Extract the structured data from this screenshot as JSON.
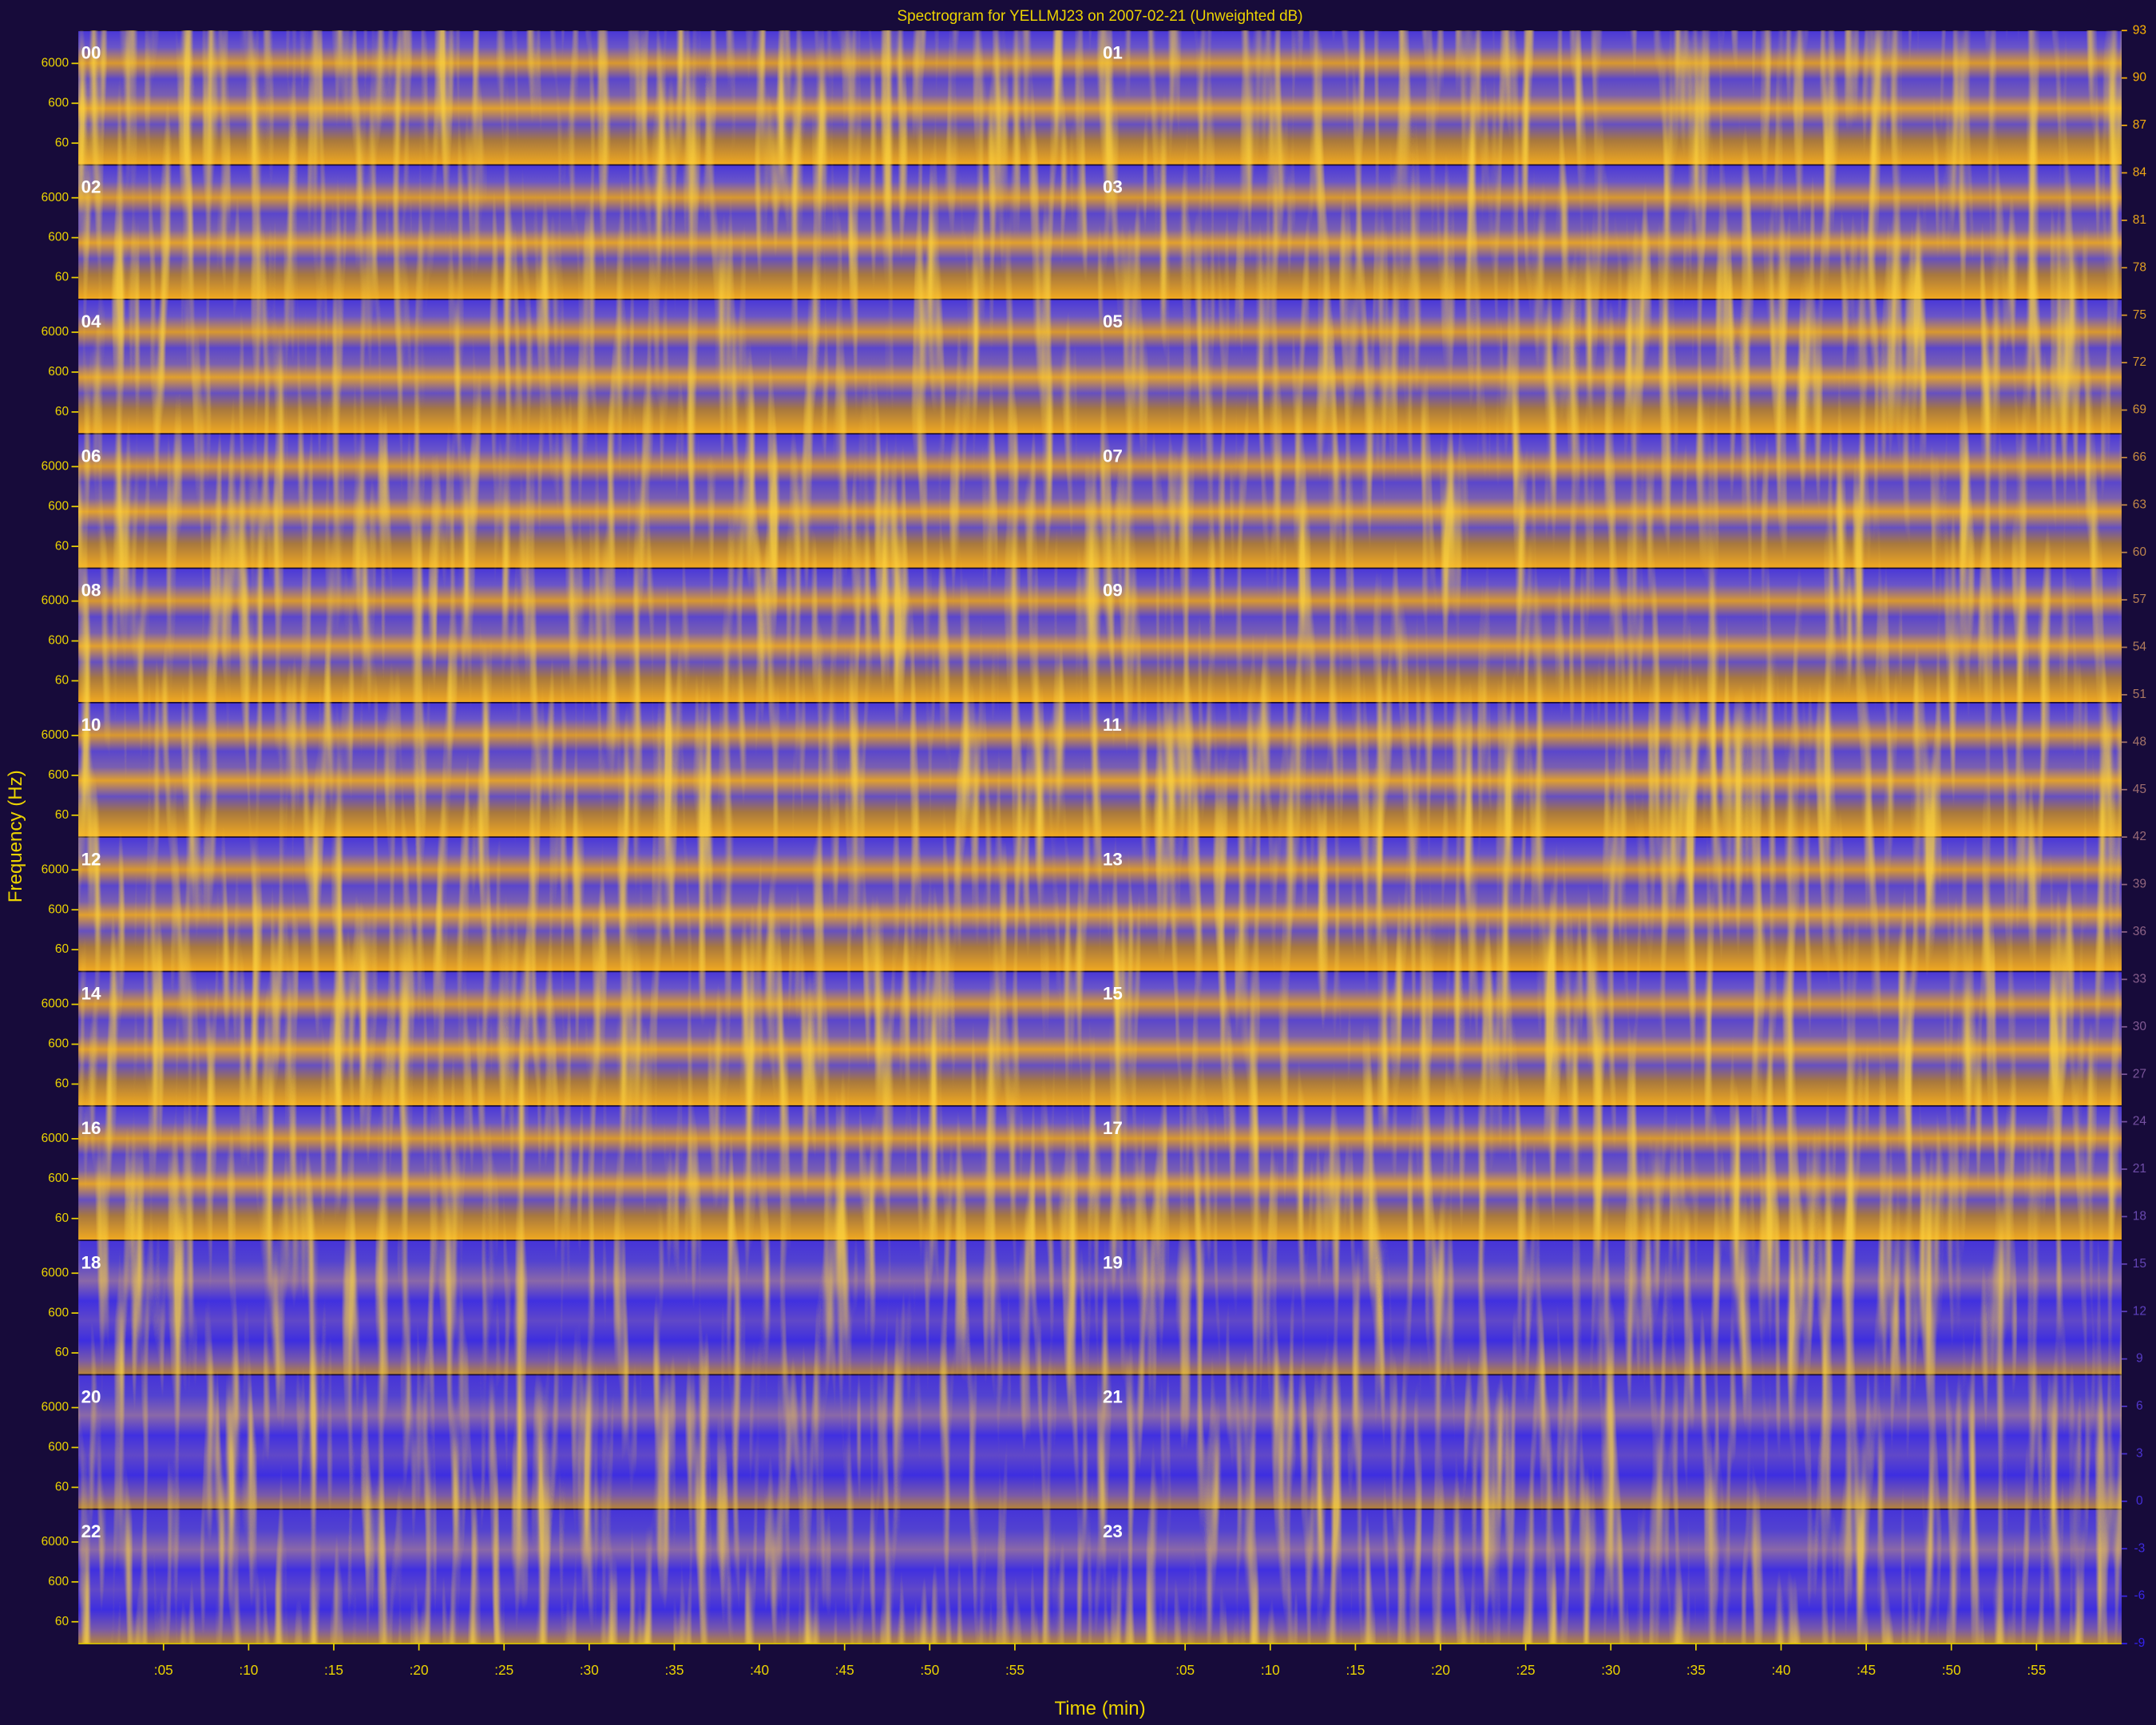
{
  "chart_data": {
    "type": "spectrogram",
    "title": "Spectrogram for YELLMJ23 on 2007-02-21 (Unweighted dB)",
    "xlabel": "Time (min)",
    "ylabel": "Frequency (Hz)",
    "panels": [
      "00",
      "01",
      "02",
      "03",
      "04",
      "05",
      "06",
      "07",
      "08",
      "09",
      "10",
      "11",
      "12",
      "13",
      "14",
      "15",
      "16",
      "17",
      "18",
      "19",
      "20",
      "21",
      "22",
      "23"
    ],
    "xlim": [
      0,
      60
    ],
    "xticks": [
      {
        "value": 5,
        "label": ":05"
      },
      {
        "value": 10,
        "label": ":10"
      },
      {
        "value": 15,
        "label": ":15"
      },
      {
        "value": 20,
        "label": ":20"
      },
      {
        "value": 25,
        "label": ":25"
      },
      {
        "value": 30,
        "label": ":30"
      },
      {
        "value": 35,
        "label": ":35"
      },
      {
        "value": 40,
        "label": ":40"
      },
      {
        "value": 45,
        "label": ":45"
      },
      {
        "value": 50,
        "label": ":50"
      },
      {
        "value": 55,
        "label": ":55"
      }
    ],
    "ylim": [
      17,
      40000
    ],
    "log_scale_y": true,
    "yticks": [
      60,
      600,
      6000
    ],
    "colorbar": {
      "clim": [
        -9,
        93
      ],
      "colors": [
        "#3322ee",
        "#ffb400"
      ],
      "ticks": [
        93,
        90,
        87,
        84,
        81,
        78,
        75,
        72,
        69,
        66,
        63,
        60,
        57,
        54,
        51,
        48,
        45,
        42,
        39,
        36,
        33,
        30,
        27,
        24,
        21,
        18,
        15,
        12,
        9,
        6,
        3,
        0,
        -3,
        -6,
        -9
      ]
    }
  }
}
